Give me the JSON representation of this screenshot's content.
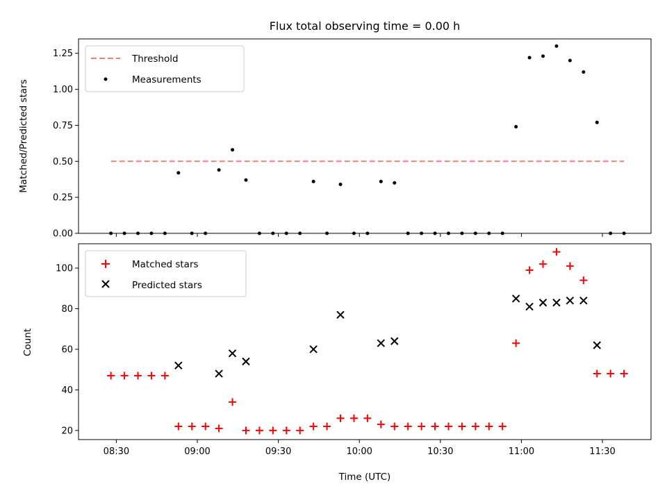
{
  "chart_data": [
    {
      "type": "scatter",
      "title": "Flux total observing time = 0.00 h",
      "xlabel": "",
      "ylabel": "Matched/Predicted stars",
      "ylim": [
        0,
        1.35
      ],
      "yticks": [
        "0.00",
        "0.25",
        "0.50",
        "0.75",
        "1.00",
        "1.25"
      ],
      "legend_position": "upper-left",
      "grid": false,
      "threshold": {
        "name": "Threshold",
        "value": 0.5,
        "x_start": "08:28",
        "x_end": "11:38",
        "color": "#f08080"
      },
      "series": [
        {
          "name": "Measurements",
          "color": "#000000",
          "marker": "dot",
          "x": [
            "08:28",
            "08:33",
            "08:38",
            "08:43",
            "08:48",
            "08:53",
            "08:58",
            "09:03",
            "09:08",
            "09:13",
            "09:18",
            "09:23",
            "09:28",
            "09:33",
            "09:38",
            "09:43",
            "09:48",
            "09:53",
            "09:58",
            "10:03",
            "10:08",
            "10:13",
            "10:18",
            "10:23",
            "10:28",
            "10:33",
            "10:38",
            "10:43",
            "10:48",
            "10:53",
            "10:58",
            "11:03",
            "11:08",
            "11:13",
            "11:18",
            "11:23",
            "11:28",
            "11:33",
            "11:38"
          ],
          "y": [
            0,
            0,
            0,
            0,
            0,
            0.42,
            0,
            0,
            0.44,
            0.58,
            0.37,
            0,
            0,
            0,
            0,
            0.36,
            0,
            0.34,
            0,
            0,
            0.36,
            0.35,
            0,
            0,
            0,
            0,
            0,
            0,
            0,
            0,
            0.74,
            1.22,
            1.23,
            1.3,
            1.2,
            1.12,
            0.77,
            0,
            0
          ]
        }
      ]
    },
    {
      "type": "scatter",
      "title": "",
      "xlabel": "Time (UTC)",
      "ylabel": "Count",
      "ylim": [
        15.5,
        112
      ],
      "yticks": [
        "20",
        "40",
        "60",
        "80",
        "100"
      ],
      "xticks": [
        "08:30",
        "09:00",
        "09:30",
        "10:00",
        "10:30",
        "11:00",
        "11:30"
      ],
      "xlim": [
        "08:16",
        "11:48"
      ],
      "legend_position": "upper-left",
      "grid": false,
      "series": [
        {
          "name": "Matched stars",
          "color": "#ff0000",
          "marker": "plus",
          "x": [
            "08:28",
            "08:33",
            "08:38",
            "08:43",
            "08:48",
            "08:53",
            "08:58",
            "09:03",
            "09:08",
            "09:13",
            "09:18",
            "09:23",
            "09:28",
            "09:33",
            "09:38",
            "09:43",
            "09:48",
            "09:53",
            "09:58",
            "10:03",
            "10:08",
            "10:13",
            "10:18",
            "10:23",
            "10:28",
            "10:33",
            "10:38",
            "10:43",
            "10:48",
            "10:53",
            "10:58",
            "11:03",
            "11:08",
            "11:13",
            "11:18",
            "11:23",
            "11:28",
            "11:33",
            "11:38"
          ],
          "y": [
            47,
            47,
            47,
            47,
            47,
            22,
            22,
            22,
            21,
            34,
            20,
            20,
            20,
            20,
            20,
            22,
            22,
            26,
            26,
            26,
            23,
            22,
            22,
            22,
            22,
            22,
            22,
            22,
            22,
            22,
            63,
            99,
            102,
            108,
            101,
            94,
            48,
            48,
            48
          ]
        },
        {
          "name": "Predicted stars",
          "color": "#000000",
          "marker": "x",
          "x": [
            "08:53",
            "09:08",
            "09:13",
            "09:18",
            "09:43",
            "09:53",
            "10:08",
            "10:13",
            "10:58",
            "11:03",
            "11:08",
            "11:13",
            "11:18",
            "11:23",
            "11:28"
          ],
          "y": [
            52,
            48,
            58,
            54,
            60,
            77,
            63,
            64,
            85,
            81,
            83,
            83,
            84,
            84,
            62
          ]
        }
      ]
    }
  ]
}
